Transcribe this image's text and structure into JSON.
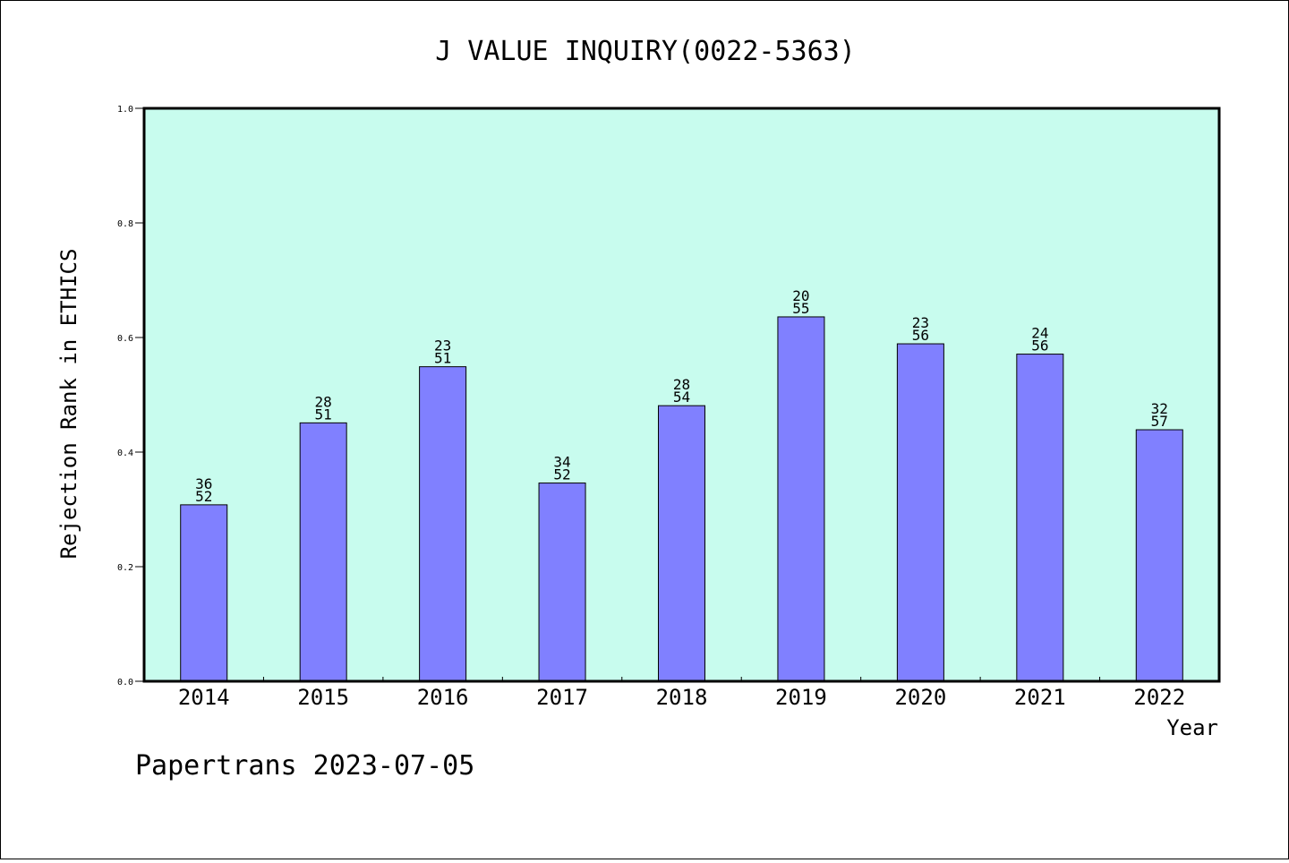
{
  "chart_data": {
    "type": "bar",
    "title": "J VALUE INQUIRY(0022-5363)",
    "xlabel": "Year",
    "ylabel": "Rejection Rank in ETHICS",
    "ylim": [
      0,
      1.0
    ],
    "yticks": [
      "0.0",
      "0.2",
      "0.4",
      "0.6",
      "0.8",
      "1.0"
    ],
    "categories": [
      "2014",
      "2015",
      "2016",
      "2017",
      "2018",
      "2019",
      "2020",
      "2021",
      "2022"
    ],
    "values": [
      0.308,
      0.451,
      0.549,
      0.346,
      0.481,
      0.636,
      0.589,
      0.571,
      0.439
    ],
    "labels_top": [
      "36",
      "28",
      "23",
      "34",
      "28",
      "20",
      "23",
      "24",
      "32"
    ],
    "labels_bottom": [
      "52",
      "51",
      "51",
      "52",
      "54",
      "55",
      "56",
      "56",
      "57"
    ],
    "colors": {
      "plot_bg": "#c8fcee",
      "bar_fill": "#8080ff",
      "bar_stroke": "#000000",
      "axis": "#000000"
    },
    "grid": false
  },
  "footer": {
    "text": "Papertrans 2023-07-05"
  }
}
